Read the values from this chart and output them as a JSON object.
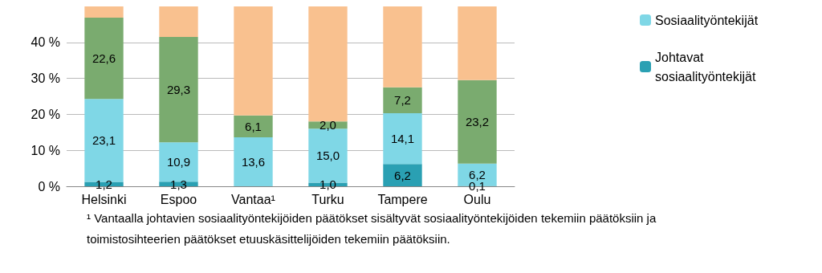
{
  "chart_data": {
    "type": "bar",
    "stacked": true,
    "categories": [
      "Helsinki",
      "Espoo",
      "Vantaa¹",
      "Turku",
      "Tampere",
      "Oulu"
    ],
    "series": [
      {
        "name": "Johtavat sosiaalityöntekijät",
        "color": "#2aa0b3",
        "values": [
          1.2,
          1.3,
          null,
          1.0,
          6.2,
          0.1
        ],
        "value_labels": [
          "1,2",
          "1,3",
          null,
          "1,0",
          "6,2",
          "0,1"
        ]
      },
      {
        "name": "Sosiaalityöntekijät",
        "color": "#7fd7e6",
        "values": [
          23.1,
          10.9,
          13.6,
          15.0,
          14.1,
          6.2
        ],
        "value_labels": [
          "23,1",
          "10,9",
          "13,6",
          "15,0",
          "14,1",
          "6,2"
        ]
      },
      {
        "color": "#7aab6f",
        "values": [
          22.6,
          29.3,
          6.1,
          2.0,
          7.2,
          23.2
        ],
        "value_labels": [
          "22,6",
          "29,3",
          "6,1",
          "2,0",
          "7,2",
          "23,2"
        ]
      },
      {
        "color": "#f9c18f",
        "values": [
          3.1,
          8.5,
          30.3,
          32.0,
          22.5,
          20.5
        ]
      }
    ],
    "ylim": [
      0,
      50
    ],
    "yticks": [
      {
        "value": 0,
        "label": "0 %"
      },
      {
        "value": 10,
        "label": "10 %"
      },
      {
        "value": 20,
        "label": "20 %"
      },
      {
        "value": 30,
        "label": "30 %"
      },
      {
        "value": 40,
        "label": "40 %"
      }
    ],
    "grid": "y",
    "legend": "right",
    "annotations": [
      "¹ Vantaalla johtavien sosiaalityöntekijöiden päätökset sisältyvät sosiaalityöntekijöiden tekemiin päätöksiin ja\ntoimistosihteerien päätökset etuuskäsittelijöiden tekemiin päätöksiin."
    ]
  }
}
